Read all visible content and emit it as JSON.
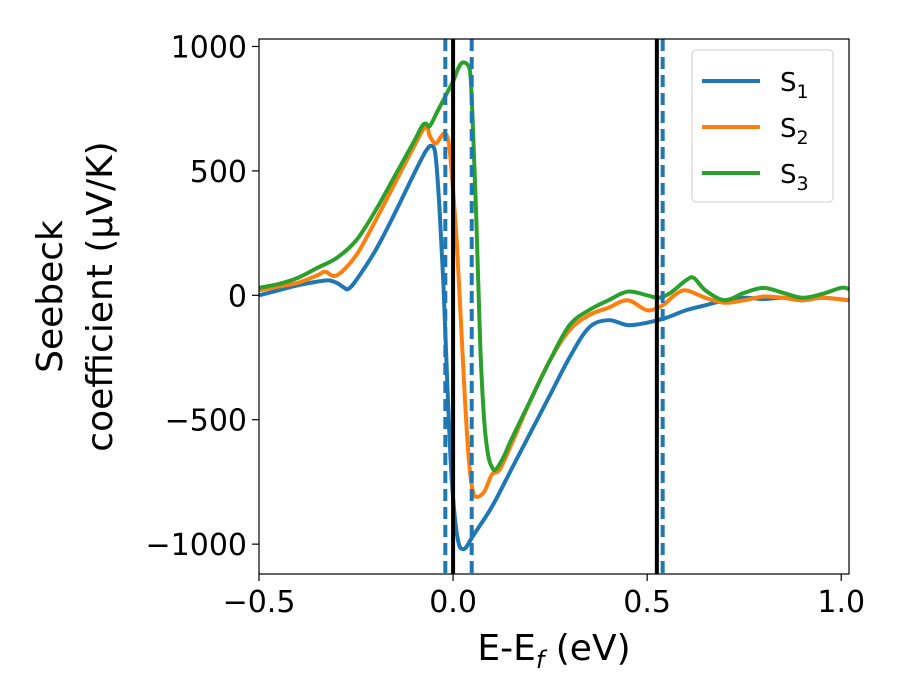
{
  "chart_data": {
    "type": "line",
    "xlabel": "E-E",
    "xlabel_sub": "f",
    "xlabel_unit": " (eV)",
    "ylabel_line1": "Seebeck",
    "ylabel_line2": "coefficient  (μV/K)",
    "xlim": [
      -0.5,
      1.02
    ],
    "ylim": [
      -1120,
      1030
    ],
    "xticks": [
      -0.5,
      0.0,
      0.5,
      1.0
    ],
    "xtick_labels": [
      "−0.5",
      "0.0",
      "0.5",
      "1.0"
    ],
    "yticks": [
      -1000,
      -500,
      0,
      500,
      1000
    ],
    "ytick_labels": [
      "−1000",
      "−500",
      "0",
      "500",
      "1000"
    ],
    "grid": false,
    "legend_position": "top-right",
    "series": [
      {
        "name": "S",
        "sub": "1",
        "color": "#1f77b4",
        "points": [
          [
            -0.5,
            0
          ],
          [
            -0.45,
            20
          ],
          [
            -0.4,
            40
          ],
          [
            -0.35,
            55
          ],
          [
            -0.32,
            60
          ],
          [
            -0.3,
            50
          ],
          [
            -0.28,
            30
          ],
          [
            -0.27,
            25
          ],
          [
            -0.25,
            60
          ],
          [
            -0.2,
            180
          ],
          [
            -0.15,
            330
          ],
          [
            -0.1,
            490
          ],
          [
            -0.07,
            580
          ],
          [
            -0.055,
            600
          ],
          [
            -0.045,
            560
          ],
          [
            -0.035,
            350
          ],
          [
            -0.025,
            50
          ],
          [
            -0.015,
            -350
          ],
          [
            -0.005,
            -700
          ],
          [
            0.005,
            -900
          ],
          [
            0.015,
            -1000
          ],
          [
            0.025,
            -1020
          ],
          [
            0.035,
            -1010
          ],
          [
            0.05,
            -970
          ],
          [
            0.1,
            -850
          ],
          [
            0.15,
            -700
          ],
          [
            0.2,
            -550
          ],
          [
            0.25,
            -400
          ],
          [
            0.3,
            -250
          ],
          [
            0.35,
            -130
          ],
          [
            0.4,
            -100
          ],
          [
            0.45,
            -120
          ],
          [
            0.5,
            -110
          ],
          [
            0.55,
            -90
          ],
          [
            0.6,
            -60
          ],
          [
            0.65,
            -40
          ],
          [
            0.7,
            -20
          ],
          [
            0.75,
            -10
          ],
          [
            0.8,
            -15
          ],
          [
            0.85,
            -10
          ],
          [
            0.9,
            -20
          ],
          [
            0.95,
            -10
          ],
          [
            1.02,
            -20
          ]
        ]
      },
      {
        "name": "S",
        "sub": "2",
        "color": "#ff7f0e",
        "points": [
          [
            -0.5,
            20
          ],
          [
            -0.45,
            35
          ],
          [
            -0.4,
            50
          ],
          [
            -0.35,
            80
          ],
          [
            -0.33,
            95
          ],
          [
            -0.3,
            80
          ],
          [
            -0.25,
            160
          ],
          [
            -0.2,
            300
          ],
          [
            -0.15,
            450
          ],
          [
            -0.1,
            600
          ],
          [
            -0.07,
            680
          ],
          [
            -0.06,
            640
          ],
          [
            -0.045,
            610
          ],
          [
            -0.03,
            640
          ],
          [
            -0.02,
            650
          ],
          [
            -0.01,
            600
          ],
          [
            0.0,
            420
          ],
          [
            0.01,
            200
          ],
          [
            0.02,
            -100
          ],
          [
            0.03,
            -400
          ],
          [
            0.04,
            -650
          ],
          [
            0.05,
            -780
          ],
          [
            0.06,
            -810
          ],
          [
            0.08,
            -790
          ],
          [
            0.1,
            -720
          ],
          [
            0.12,
            -700
          ],
          [
            0.15,
            -600
          ],
          [
            0.2,
            -420
          ],
          [
            0.25,
            -260
          ],
          [
            0.3,
            -140
          ],
          [
            0.35,
            -80
          ],
          [
            0.4,
            -50
          ],
          [
            0.45,
            -20
          ],
          [
            0.5,
            -60
          ],
          [
            0.54,
            -40
          ],
          [
            0.57,
            0
          ],
          [
            0.6,
            20
          ],
          [
            0.65,
            -10
          ],
          [
            0.7,
            -30
          ],
          [
            0.75,
            -20
          ],
          [
            0.8,
            -5
          ],
          [
            0.85,
            -10
          ],
          [
            0.9,
            -20
          ],
          [
            0.95,
            -10
          ],
          [
            1.02,
            -20
          ]
        ]
      },
      {
        "name": "S",
        "sub": "3",
        "color": "#2ca02c",
        "points": [
          [
            -0.5,
            30
          ],
          [
            -0.45,
            45
          ],
          [
            -0.4,
            70
          ],
          [
            -0.35,
            110
          ],
          [
            -0.3,
            150
          ],
          [
            -0.25,
            220
          ],
          [
            -0.2,
            340
          ],
          [
            -0.15,
            480
          ],
          [
            -0.1,
            620
          ],
          [
            -0.08,
            680
          ],
          [
            -0.07,
            690
          ],
          [
            -0.06,
            680
          ],
          [
            -0.04,
            740
          ],
          [
            -0.02,
            800
          ],
          [
            0.0,
            860
          ],
          [
            0.01,
            900
          ],
          [
            0.02,
            930
          ],
          [
            0.03,
            935
          ],
          [
            0.04,
            920
          ],
          [
            0.045,
            880
          ],
          [
            0.05,
            720
          ],
          [
            0.06,
            300
          ],
          [
            0.07,
            -200
          ],
          [
            0.08,
            -500
          ],
          [
            0.09,
            -640
          ],
          [
            0.1,
            -690
          ],
          [
            0.11,
            -700
          ],
          [
            0.13,
            -650
          ],
          [
            0.15,
            -580
          ],
          [
            0.2,
            -420
          ],
          [
            0.25,
            -260
          ],
          [
            0.3,
            -120
          ],
          [
            0.35,
            -60
          ],
          [
            0.4,
            -20
          ],
          [
            0.45,
            15
          ],
          [
            0.5,
            0
          ],
          [
            0.53,
            -10
          ],
          [
            0.56,
            10
          ],
          [
            0.6,
            60
          ],
          [
            0.62,
            70
          ],
          [
            0.65,
            20
          ],
          [
            0.7,
            -20
          ],
          [
            0.75,
            10
          ],
          [
            0.8,
            30
          ],
          [
            0.85,
            10
          ],
          [
            0.9,
            -10
          ],
          [
            0.95,
            5
          ],
          [
            1.0,
            30
          ],
          [
            1.02,
            25
          ]
        ]
      }
    ],
    "solid_vlines_x": [
      0.0,
      0.525
    ],
    "solid_vline_color": "#000000",
    "dashed_vlines_x": [
      -0.02,
      0.048,
      0.54
    ],
    "dashed_vline_color": "#1f77b4"
  }
}
